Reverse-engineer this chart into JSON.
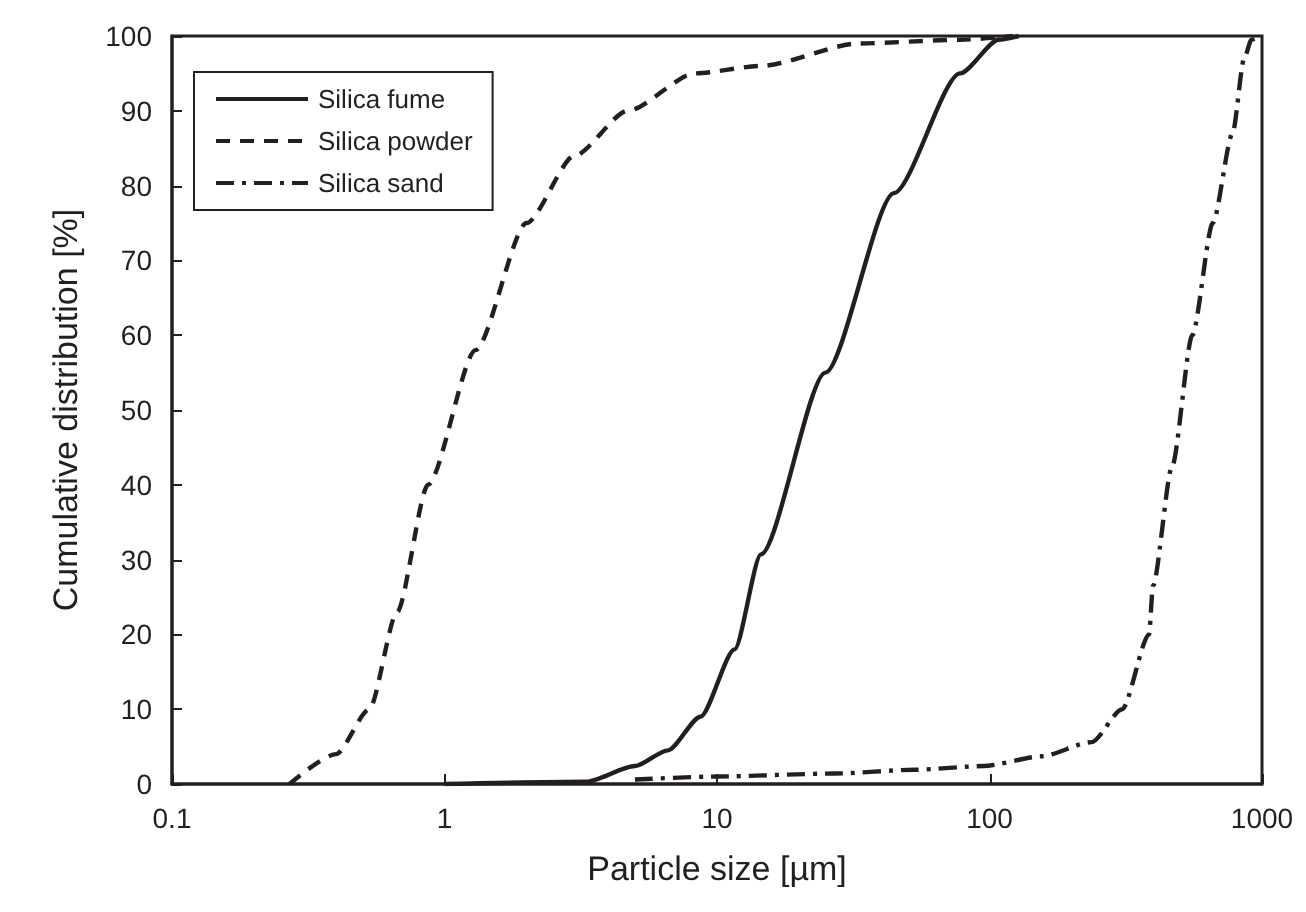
{
  "chart_data": {
    "type": "line",
    "xlabel": "Particle size [µm]",
    "ylabel": "Cumulative distribution [%]",
    "log": "x",
    "xlim": [
      0.1,
      1000
    ],
    "xticks": [
      0.1,
      1,
      10,
      100,
      1000
    ],
    "ylim": [
      0,
      100
    ],
    "yticks": [
      0,
      10,
      20,
      30,
      40,
      50,
      60,
      70,
      80,
      90,
      100
    ],
    "grid": false,
    "legend": "top left",
    "marker": "none",
    "series": [
      {
        "name": "Silica fume",
        "color": "#231f20",
        "line_style": "solid",
        "x": [
          1,
          3.3,
          5,
          6.6,
          8.7,
          11.6,
          14.5,
          25,
          44.6,
          78,
          108,
          128
        ],
        "values": [
          0,
          0.3,
          2.4,
          4.5,
          9,
          18,
          30.7,
          55,
          79,
          95,
          99.5,
          100
        ]
      },
      {
        "name": "Silica powder",
        "color": "#231f20",
        "line_style": "dashed",
        "x": [
          0.27,
          0.4,
          0.53,
          0.67,
          0.87,
          1.3,
          2,
          3,
          4.7,
          8.3,
          14.5,
          33,
          78,
          122
        ],
        "values": [
          0,
          4,
          10,
          23,
          40,
          58,
          75,
          84,
          90,
          95,
          96,
          99,
          99.5,
          100
        ]
      },
      {
        "name": "Silica sand",
        "color": "#231f20",
        "line_style": "dashdot",
        "x": [
          5,
          10,
          27,
          53,
          95,
          155,
          237,
          307,
          385,
          398,
          468,
          555,
          660,
          780,
          860,
          915,
          1000
        ],
        "values": [
          0.6,
          1,
          1.4,
          1.9,
          2.4,
          3.7,
          5.6,
          10,
          20,
          26.5,
          42.5,
          60,
          75,
          87,
          97,
          99.5,
          100
        ]
      }
    ]
  }
}
